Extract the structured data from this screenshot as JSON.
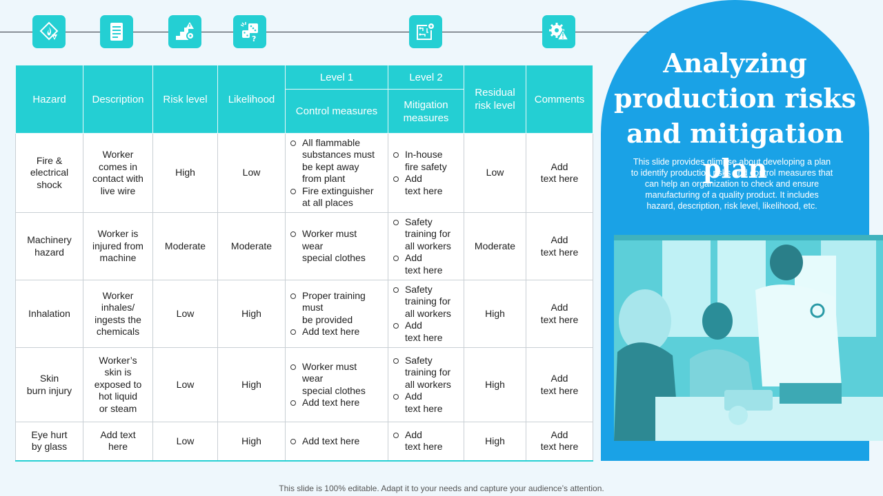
{
  "colors": {
    "accent": "#24cfd3",
    "panel": "#1aa2e6",
    "background": "#eef7fc"
  },
  "icons": [
    "fire-hazard-icon",
    "document-list-icon",
    "stairs-gear-warning-icon",
    "dice-question-icon",
    "circuit-gear-icon",
    "gear-warning-icon"
  ],
  "table": {
    "headers": {
      "hazard": "Hazard",
      "description": "Description",
      "risk_level": "Risk level",
      "likelihood": "Likelihood",
      "level1": "Level 1",
      "level2": "Level 2",
      "control": "Control measures",
      "mitigation": [
        "Mitigation",
        "measures"
      ],
      "residual": [
        "Residual",
        "risk level"
      ],
      "comments": "Comments"
    },
    "rows": [
      {
        "hazard": [
          "Fire &",
          "electrical",
          "shock"
        ],
        "description": [
          "Worker",
          "comes in",
          "contact with",
          "live wire"
        ],
        "risk": "High",
        "likelihood": "Low",
        "control": [
          [
            "All flammable",
            "substances must",
            "be kept away",
            "from plant"
          ],
          [
            "Fire extinguisher",
            "at all places"
          ]
        ],
        "mitigation": [
          [
            "In-house",
            "fire safety"
          ],
          [
            "Add",
            "text here"
          ]
        ],
        "residual": "Low",
        "comments": [
          "Add",
          "text here"
        ]
      },
      {
        "hazard": [
          "Machinery",
          "hazard"
        ],
        "description": [
          "Worker is",
          "injured from",
          "machine"
        ],
        "risk": "Moderate",
        "likelihood": "Moderate",
        "control": [
          [
            "Worker must",
            "wear",
            "special clothes"
          ]
        ],
        "mitigation": [
          [
            "Safety",
            "training for",
            "all workers"
          ],
          [
            "Add",
            "text here"
          ]
        ],
        "residual": "Moderate",
        "comments": [
          "Add",
          "text here"
        ]
      },
      {
        "hazard": [
          "Inhalation"
        ],
        "description": [
          "Worker",
          "inhales/",
          "ingests the",
          "chemicals"
        ],
        "risk": "Low",
        "likelihood": "High",
        "control": [
          [
            "Proper training",
            "must",
            "be provided"
          ],
          [
            "Add text here"
          ]
        ],
        "mitigation": [
          [
            "Safety",
            "training for",
            "all workers"
          ],
          [
            "Add",
            "text here"
          ]
        ],
        "residual": "High",
        "comments": [
          "Add",
          "text here"
        ]
      },
      {
        "hazard": [
          "Skin",
          "burn injury"
        ],
        "description": [
          "Worker’s",
          "skin is",
          "exposed to",
          "hot liquid",
          "or steam"
        ],
        "risk": "Low",
        "likelihood": "High",
        "control": [
          [
            "Worker must",
            "wear",
            "special clothes"
          ],
          [
            "Add text here"
          ]
        ],
        "mitigation": [
          [
            "Safety",
            "training for",
            "all workers"
          ],
          [
            "Add",
            "text here"
          ]
        ],
        "residual": "High",
        "comments": [
          "Add",
          "text here"
        ]
      },
      {
        "hazard": [
          "Eye hurt",
          "by glass"
        ],
        "description": [
          "Add text",
          "here"
        ],
        "risk": "Low",
        "likelihood": "High",
        "control": [
          [
            "Add text here"
          ]
        ],
        "mitigation": [
          [
            "Add",
            "text here"
          ]
        ],
        "residual": "High",
        "comments": [
          "Add",
          "text here"
        ]
      }
    ]
  },
  "panel": {
    "title": [
      "Analyzing",
      "production risks",
      "and mitigation plan"
    ],
    "description": [
      "This slide provides glimpse about developing a plan",
      "to identify production risks and control measures that",
      "can help an organization to check and ensure",
      "manufacturing of a quality product. It includes",
      "hazard, description, risk level, likelihood, etc."
    ]
  },
  "footer": "This slide is 100% editable. Adapt it to your needs and capture your audience’s attention."
}
